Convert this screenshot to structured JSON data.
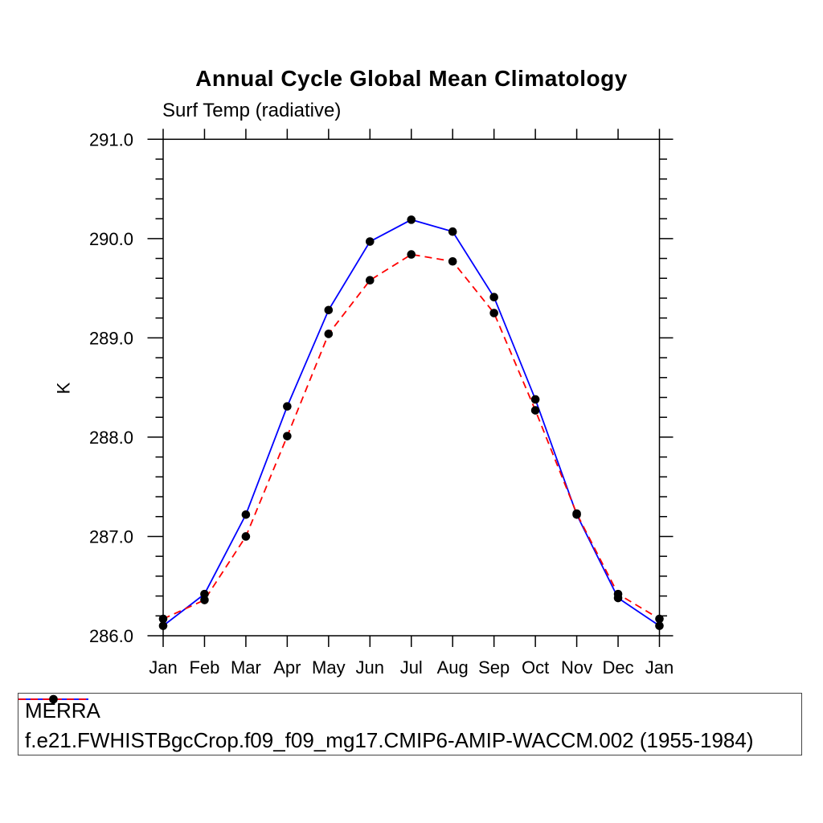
{
  "chart_data": {
    "type": "line",
    "title": "Annual Cycle Global Mean Climatology",
    "subtitle": "Surf Temp (radiative)",
    "ylabel": "K",
    "x_categories": [
      "Jan",
      "Feb",
      "Mar",
      "Apr",
      "May",
      "Jun",
      "Jul",
      "Aug",
      "Sep",
      "Oct",
      "Nov",
      "Dec",
      "Jan"
    ],
    "ylim": [
      286.0,
      291.0
    ],
    "ytick_labels": [
      "286.0",
      "287.0",
      "288.0",
      "289.0",
      "290.0",
      "291.0"
    ],
    "ytick_step_major": 1.0,
    "ytick_step_minor": 0.2,
    "grid": false,
    "legend_position": "bottom-box",
    "series": [
      {
        "name": "MERRA",
        "line_color": "#0000ff",
        "line_style": "solid",
        "marker": "filled-circle",
        "marker_color": "#000000",
        "values": [
          286.1,
          286.42,
          287.22,
          288.31,
          289.28,
          289.97,
          290.19,
          290.07,
          289.41,
          288.38,
          287.22,
          286.38,
          286.1
        ]
      },
      {
        "name": "f.e21.FWHISTBgcCrop.f09_f09_mg17.CMIP6-AMIP-WACCM.002 (1955-1984)",
        "line_color": "#ff0000",
        "line_style": "dashed",
        "marker": "filled-circle",
        "marker_color": "#000000",
        "values": [
          286.17,
          286.36,
          287.0,
          288.01,
          289.04,
          289.58,
          289.84,
          289.77,
          289.25,
          288.27,
          287.23,
          286.42,
          286.17
        ]
      }
    ]
  }
}
